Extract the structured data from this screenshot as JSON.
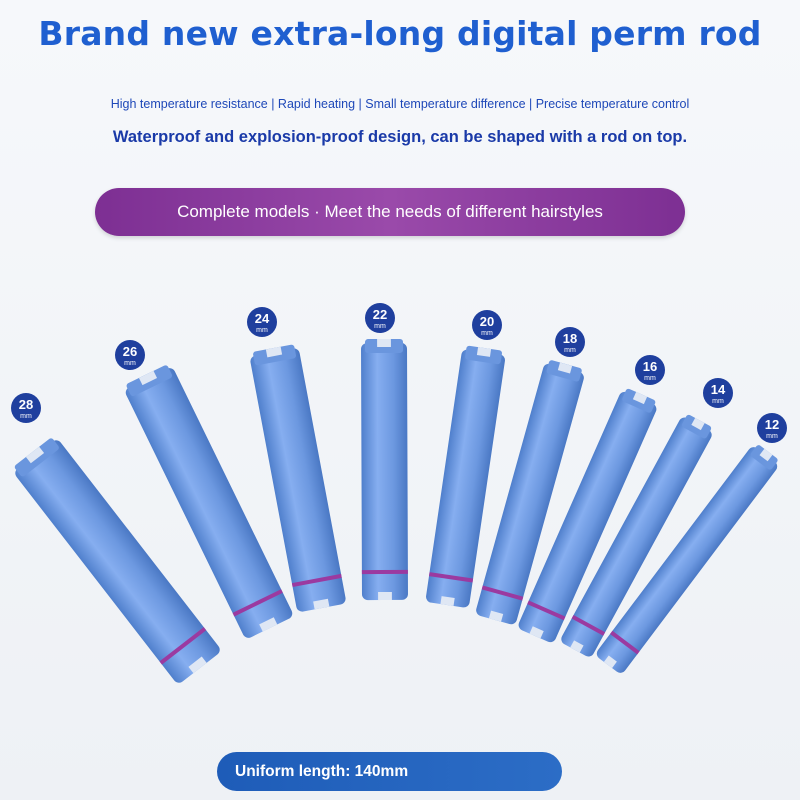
{
  "header": {
    "title": "Brand new extra-long digital perm rod",
    "features": "High temperature resistance | Rapid heating | Small temperature difference | Precise temperature control",
    "design": "Waterproof and explosion-proof design, can be shaped with a rod on top."
  },
  "models_banner": "Complete models · Meet the needs of different hairstyles",
  "rods": [
    {
      "size": "28",
      "unit": "mm"
    },
    {
      "size": "26",
      "unit": "mm"
    },
    {
      "size": "24",
      "unit": "mm"
    },
    {
      "size": "22",
      "unit": "mm"
    },
    {
      "size": "20",
      "unit": "mm"
    },
    {
      "size": "18",
      "unit": "mm"
    },
    {
      "size": "16",
      "unit": "mm"
    },
    {
      "size": "14",
      "unit": "mm"
    },
    {
      "size": "12",
      "unit": "mm"
    }
  ],
  "length_banner": "Uniform length: 140mm",
  "colors": {
    "title": "#1f5fd0",
    "rod": "#6f9be0",
    "band": "#9b3aa0",
    "banner_purple": "#8a3a9e",
    "banner_blue": "#2462bd"
  }
}
